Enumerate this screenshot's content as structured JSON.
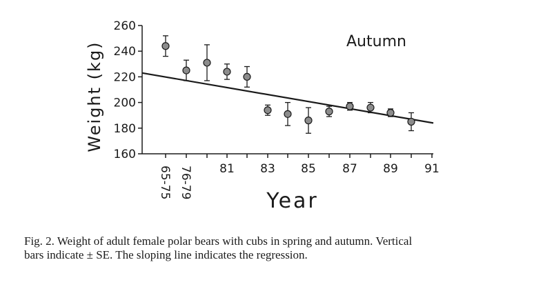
{
  "chart_data": {
    "type": "scatter",
    "title": "",
    "annotation": "Autumn",
    "xlabel": "Year",
    "ylabel": "Weight (kg)",
    "ylim": [
      160,
      260
    ],
    "y_ticks": [
      160,
      180,
      200,
      220,
      240,
      260
    ],
    "x_tick_labels": [
      "65-75",
      "76-79",
      "81",
      "83",
      "85",
      "87",
      "89",
      "91"
    ],
    "grid": false,
    "series": [
      {
        "points": [
          {
            "x": "65-75",
            "y": 244,
            "se": 8
          },
          {
            "x": "76-79",
            "y": 225,
            "se": 8
          },
          {
            "x": "80",
            "y": 231,
            "se": 14
          },
          {
            "x": "81",
            "y": 224,
            "se": 6
          },
          {
            "x": "82",
            "y": 220,
            "se": 8
          },
          {
            "x": "83",
            "y": 194,
            "se": 4
          },
          {
            "x": "84",
            "y": 191,
            "se": 9
          },
          {
            "x": "85",
            "y": 186,
            "se": 10
          },
          {
            "x": "86",
            "y": 193,
            "se": 4
          },
          {
            "x": "87",
            "y": 197,
            "se": 3
          },
          {
            "x": "88",
            "y": 196,
            "se": 4
          },
          {
            "x": "89",
            "y": 192,
            "se": 3
          },
          {
            "x": "90",
            "y": 185,
            "se": 7
          }
        ]
      }
    ],
    "regression": {
      "y_start": 223,
      "y_end": 184
    }
  },
  "caption": {
    "line1": "Fig. 2.  Weight of adult female polar bears with cubs in spring and autumn.  Vertical",
    "line2": "bars indicate ± SE.  The sloping line indicates the regression."
  }
}
